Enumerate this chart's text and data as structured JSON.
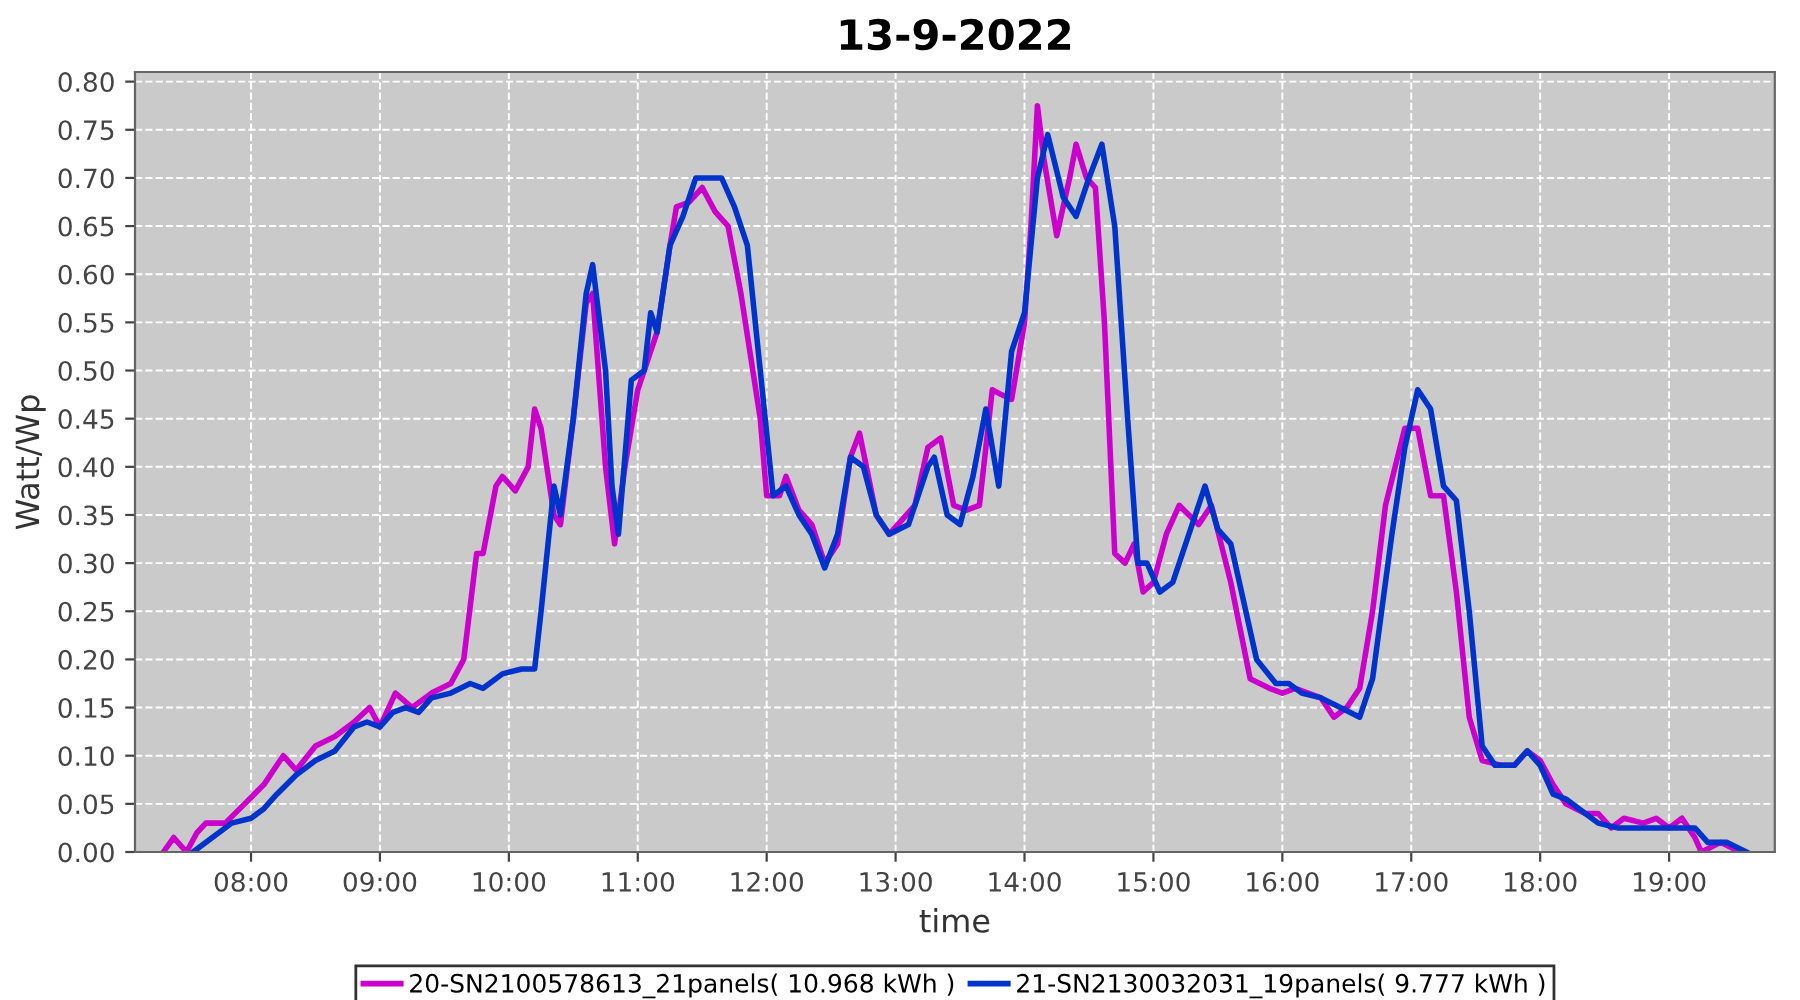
{
  "chart_data": {
    "type": "line",
    "title": "13-9-2022",
    "xlabel": "time",
    "ylabel": "Watt/Wp",
    "xlim": [
      7.1,
      19.82
    ],
    "ylim": [
      0,
      0.81
    ],
    "xticks": [
      {
        "value": 8,
        "label": "08:00"
      },
      {
        "value": 9,
        "label": "09:00"
      },
      {
        "value": 10,
        "label": "10:00"
      },
      {
        "value": 11,
        "label": "11:00"
      },
      {
        "value": 12,
        "label": "12:00"
      },
      {
        "value": 13,
        "label": "13:00"
      },
      {
        "value": 14,
        "label": "14:00"
      },
      {
        "value": 15,
        "label": "15:00"
      },
      {
        "value": 16,
        "label": "16:00"
      },
      {
        "value": 17,
        "label": "17:00"
      },
      {
        "value": 18,
        "label": "18:00"
      },
      {
        "value": 19,
        "label": "19:00"
      }
    ],
    "yticks": [
      {
        "value": 0,
        "label": "0.00"
      },
      {
        "value": 0.05,
        "label": "0.05"
      },
      {
        "value": 0.1,
        "label": "0.10"
      },
      {
        "value": 0.15,
        "label": "0.15"
      },
      {
        "value": 0.2,
        "label": "0.20"
      },
      {
        "value": 0.25,
        "label": "0.25"
      },
      {
        "value": 0.3,
        "label": "0.30"
      },
      {
        "value": 0.35,
        "label": "0.35"
      },
      {
        "value": 0.4,
        "label": "0.40"
      },
      {
        "value": 0.45,
        "label": "0.45"
      },
      {
        "value": 0.5,
        "label": "0.50"
      },
      {
        "value": 0.55,
        "label": "0.55"
      },
      {
        "value": 0.6,
        "label": "0.60"
      },
      {
        "value": 0.65,
        "label": "0.65"
      },
      {
        "value": 0.7,
        "label": "0.70"
      },
      {
        "value": 0.75,
        "label": "0.75"
      },
      {
        "value": 0.8,
        "label": "0.80"
      }
    ],
    "grid": true,
    "legend": "bottom",
    "line_style": "solid",
    "marker": "none",
    "series": [
      {
        "name": "20-SN2100578613_21panels( 10.968 kWh )",
        "color": "#cc00cc",
        "x": [
          7.32,
          7.4,
          7.5,
          7.58,
          7.65,
          7.8,
          7.95,
          8.1,
          8.25,
          8.35,
          8.5,
          8.65,
          8.8,
          8.92,
          9.0,
          9.12,
          9.25,
          9.4,
          9.55,
          9.65,
          9.75,
          9.8,
          9.9,
          9.95,
          10.05,
          10.15,
          10.2,
          10.25,
          10.35,
          10.4,
          10.5,
          10.6,
          10.65,
          10.75,
          10.82,
          10.9,
          11.0,
          11.05,
          11.15,
          11.25,
          11.3,
          11.4,
          11.5,
          11.6,
          11.7,
          11.8,
          11.95,
          12.0,
          12.1,
          12.15,
          12.25,
          12.35,
          12.45,
          12.55,
          12.65,
          12.72,
          12.85,
          12.95,
          13.05,
          13.15,
          13.25,
          13.35,
          13.45,
          13.55,
          13.65,
          13.75,
          13.82,
          13.9,
          14.0,
          14.05,
          14.1,
          14.15,
          14.25,
          14.35,
          14.4,
          14.48,
          14.55,
          14.62,
          14.7,
          14.78,
          14.85,
          14.92,
          15.0,
          15.1,
          15.2,
          15.35,
          15.45,
          15.6,
          15.75,
          15.9,
          16.0,
          16.1,
          16.2,
          16.3,
          16.4,
          16.5,
          16.6,
          16.7,
          16.8,
          16.95,
          17.05,
          17.15,
          17.25,
          17.35,
          17.45,
          17.55,
          17.7,
          17.8,
          17.9,
          18.0,
          18.1,
          18.2,
          18.35,
          18.45,
          18.55,
          18.65,
          18.8,
          18.9,
          19.0,
          19.1,
          19.2,
          19.25,
          19.4,
          19.55
        ],
        "values": [
          0.0,
          0.015,
          0.0,
          0.02,
          0.03,
          0.03,
          0.05,
          0.07,
          0.1,
          0.085,
          0.11,
          0.12,
          0.135,
          0.15,
          0.13,
          0.165,
          0.15,
          0.165,
          0.175,
          0.2,
          0.31,
          0.31,
          0.38,
          0.39,
          0.375,
          0.4,
          0.46,
          0.44,
          0.35,
          0.34,
          0.45,
          0.57,
          0.58,
          0.4,
          0.32,
          0.4,
          0.48,
          0.5,
          0.54,
          0.63,
          0.67,
          0.675,
          0.69,
          0.665,
          0.65,
          0.58,
          0.45,
          0.37,
          0.37,
          0.39,
          0.355,
          0.34,
          0.3,
          0.32,
          0.41,
          0.435,
          0.35,
          0.33,
          0.345,
          0.36,
          0.42,
          0.43,
          0.36,
          0.355,
          0.36,
          0.48,
          0.475,
          0.47,
          0.55,
          0.65,
          0.775,
          0.72,
          0.64,
          0.7,
          0.735,
          0.7,
          0.69,
          0.55,
          0.31,
          0.3,
          0.32,
          0.27,
          0.28,
          0.33,
          0.36,
          0.34,
          0.36,
          0.28,
          0.18,
          0.17,
          0.165,
          0.17,
          0.165,
          0.16,
          0.14,
          0.15,
          0.17,
          0.25,
          0.36,
          0.44,
          0.44,
          0.37,
          0.37,
          0.27,
          0.14,
          0.095,
          0.09,
          0.09,
          0.105,
          0.095,
          0.07,
          0.05,
          0.04,
          0.04,
          0.025,
          0.035,
          0.03,
          0.035,
          0.025,
          0.035,
          0.015,
          0.0,
          0.01,
          0.0
        ]
      },
      {
        "name": "21-SN2130032031_19panels( 9.777 kWh )",
        "color": "#0033cc",
        "x": [
          7.55,
          7.7,
          7.85,
          8.0,
          8.1,
          8.2,
          8.35,
          8.5,
          8.65,
          8.8,
          8.9,
          9.0,
          9.1,
          9.2,
          9.3,
          9.4,
          9.55,
          9.7,
          9.8,
          9.95,
          10.1,
          10.2,
          10.25,
          10.35,
          10.4,
          10.5,
          10.6,
          10.65,
          10.75,
          10.8,
          10.85,
          10.95,
          11.05,
          11.1,
          11.15,
          11.25,
          11.35,
          11.45,
          11.55,
          11.65,
          11.75,
          11.85,
          11.95,
          12.05,
          12.15,
          12.25,
          12.35,
          12.45,
          12.55,
          12.65,
          12.75,
          12.85,
          12.95,
          13.1,
          13.25,
          13.3,
          13.4,
          13.5,
          13.6,
          13.7,
          13.8,
          13.9,
          14.0,
          14.1,
          14.18,
          14.3,
          14.4,
          14.5,
          14.6,
          14.7,
          14.8,
          14.88,
          14.95,
          15.05,
          15.15,
          15.3,
          15.4,
          15.5,
          15.6,
          15.7,
          15.8,
          15.95,
          16.05,
          16.15,
          16.3,
          16.45,
          16.6,
          16.7,
          16.85,
          16.95,
          17.05,
          17.15,
          17.25,
          17.35,
          17.45,
          17.55,
          17.65,
          17.8,
          17.9,
          18.0,
          18.1,
          18.2,
          18.35,
          18.45,
          18.6,
          18.75,
          18.9,
          19.05,
          19.2,
          19.3,
          19.45,
          19.6
        ],
        "values": [
          0.0,
          0.015,
          0.03,
          0.035,
          0.045,
          0.06,
          0.08,
          0.095,
          0.105,
          0.13,
          0.135,
          0.13,
          0.145,
          0.15,
          0.145,
          0.16,
          0.165,
          0.175,
          0.17,
          0.185,
          0.19,
          0.19,
          0.25,
          0.38,
          0.35,
          0.45,
          0.58,
          0.61,
          0.5,
          0.38,
          0.33,
          0.49,
          0.5,
          0.56,
          0.54,
          0.63,
          0.66,
          0.7,
          0.7,
          0.7,
          0.67,
          0.63,
          0.5,
          0.37,
          0.38,
          0.35,
          0.33,
          0.295,
          0.33,
          0.41,
          0.4,
          0.35,
          0.33,
          0.34,
          0.4,
          0.41,
          0.35,
          0.34,
          0.39,
          0.46,
          0.38,
          0.52,
          0.56,
          0.7,
          0.745,
          0.68,
          0.66,
          0.7,
          0.735,
          0.65,
          0.45,
          0.3,
          0.3,
          0.27,
          0.28,
          0.34,
          0.38,
          0.335,
          0.32,
          0.26,
          0.2,
          0.175,
          0.175,
          0.165,
          0.16,
          0.15,
          0.14,
          0.18,
          0.33,
          0.42,
          0.48,
          0.46,
          0.38,
          0.365,
          0.25,
          0.11,
          0.09,
          0.09,
          0.105,
          0.09,
          0.06,
          0.055,
          0.04,
          0.03,
          0.025,
          0.025,
          0.025,
          0.025,
          0.025,
          0.01,
          0.01,
          0.0
        ]
      }
    ]
  }
}
